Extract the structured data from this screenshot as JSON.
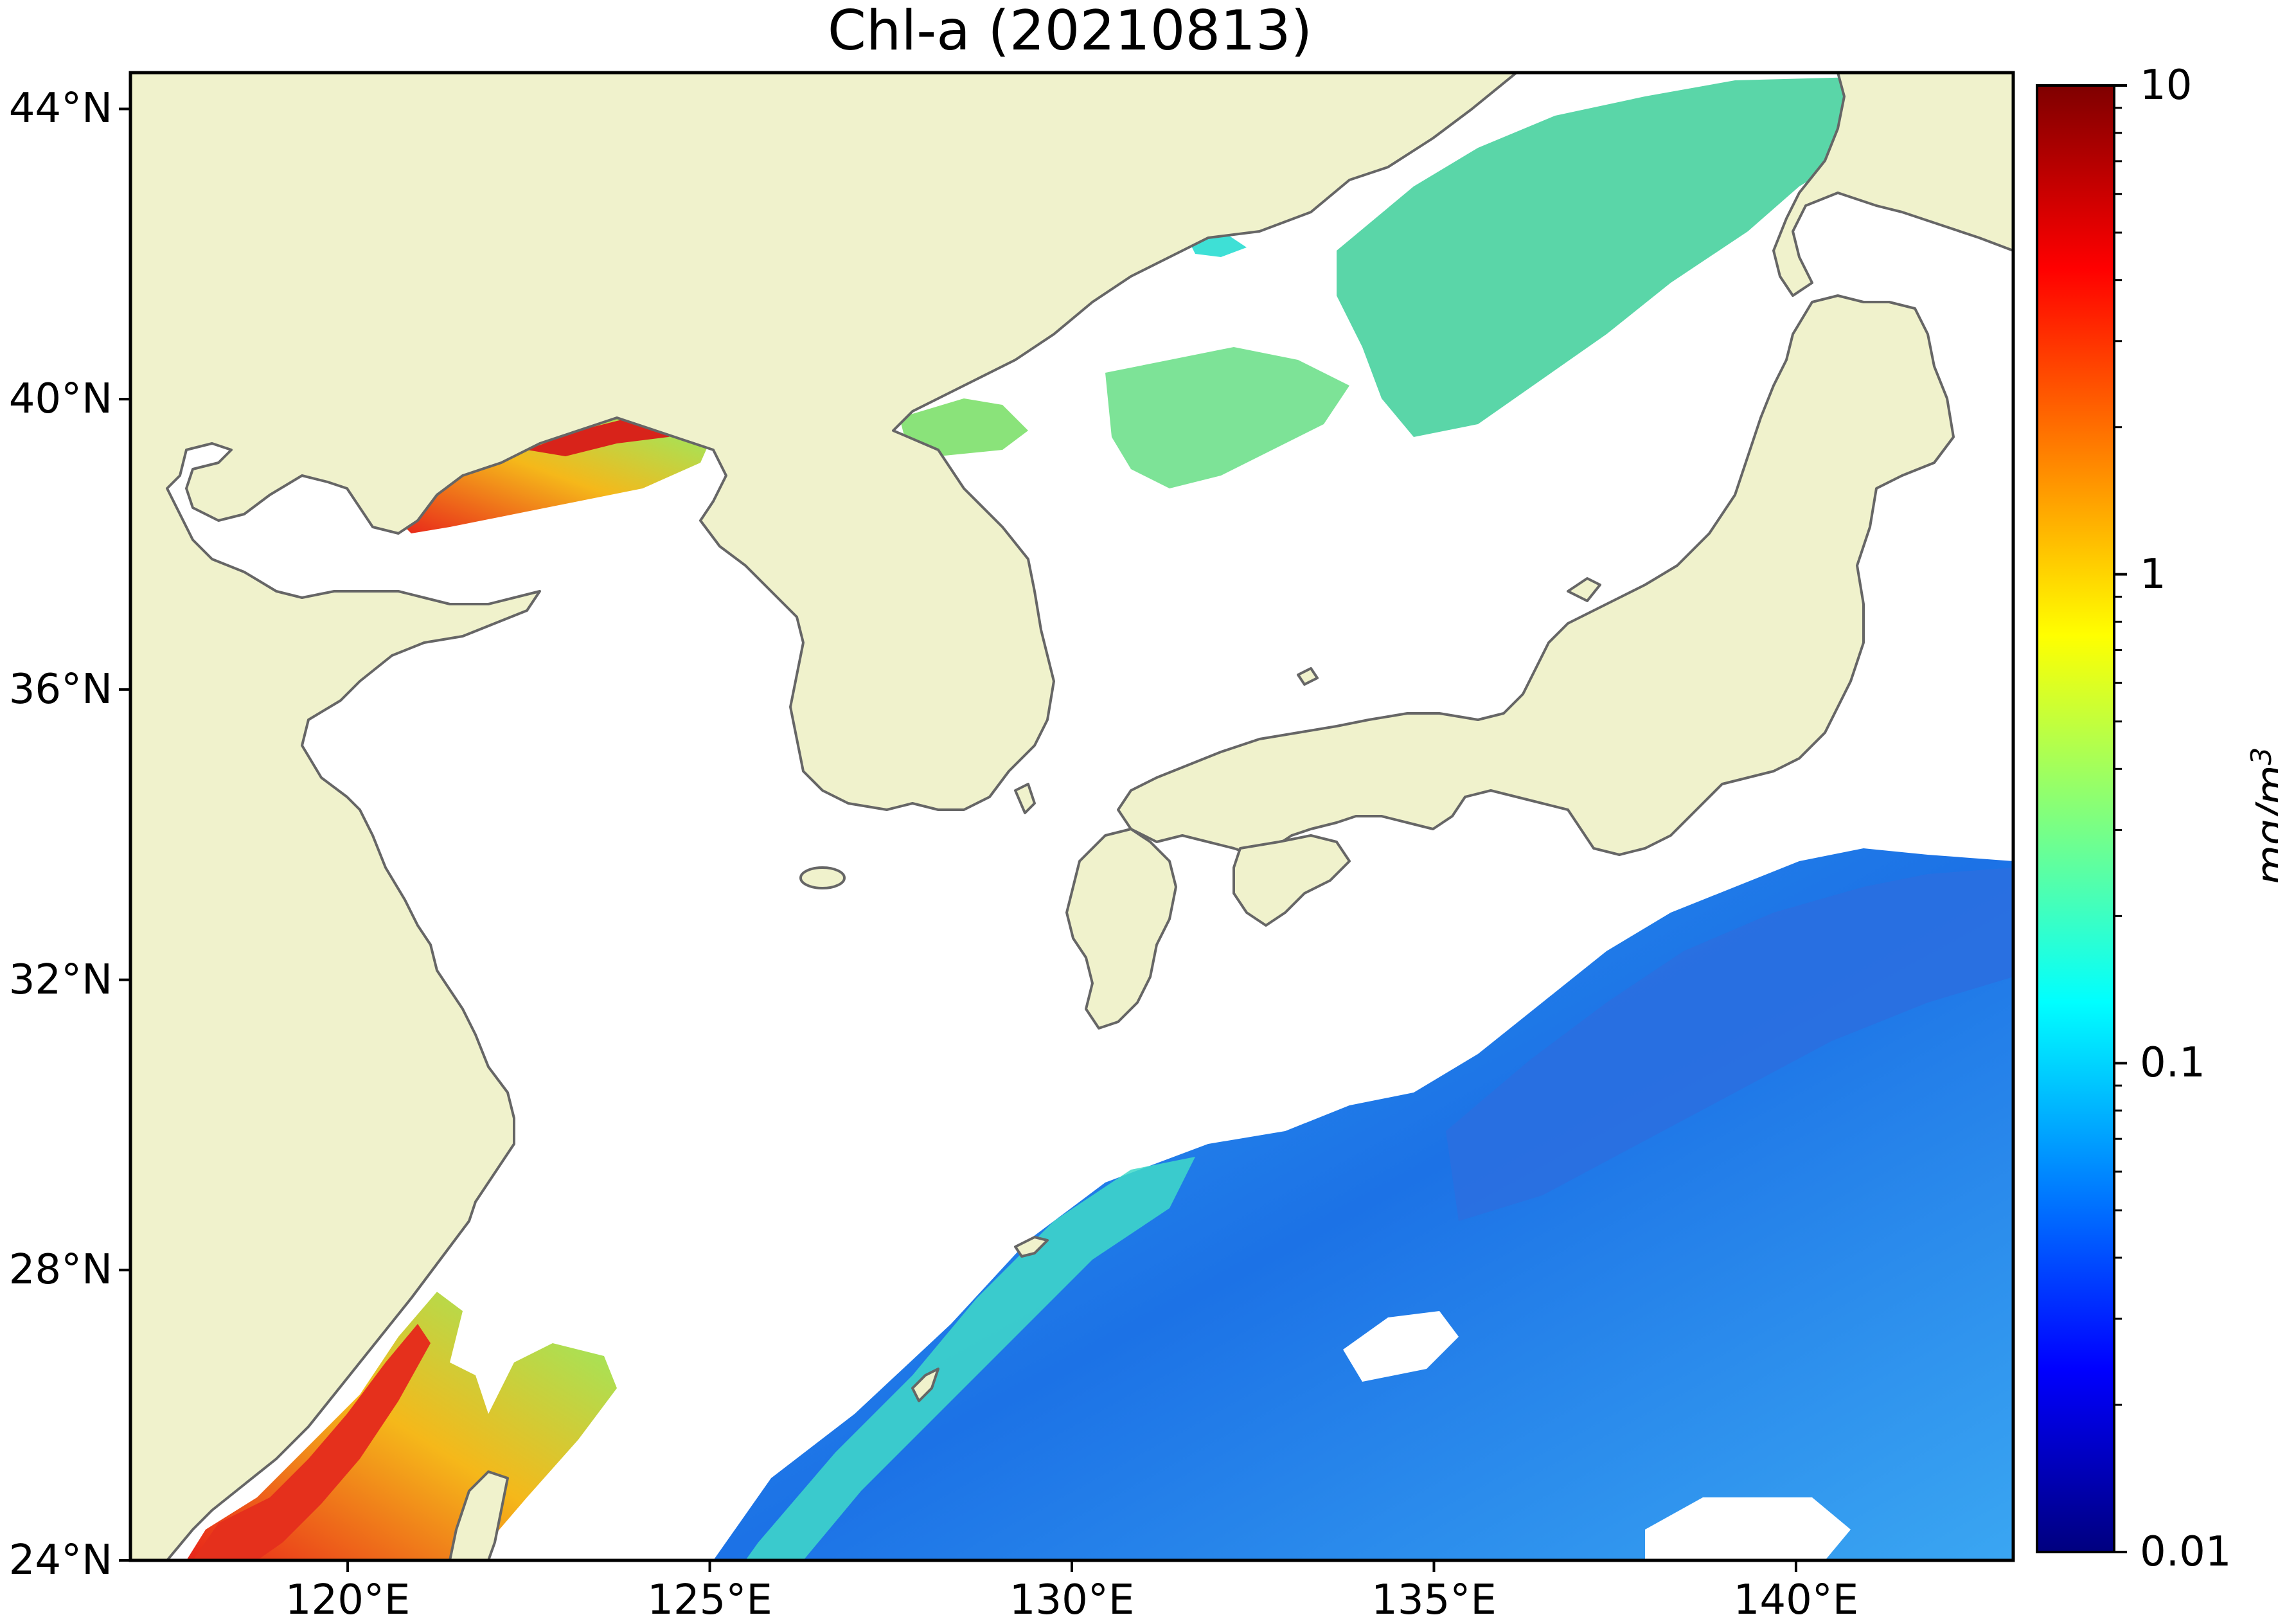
{
  "title": "Chl-a (20210813)",
  "map": {
    "projection": "equirectangular",
    "lon_range": [
      117,
      143
    ],
    "lat_range": [
      24,
      44.5
    ],
    "land_color": "#f0f2cc",
    "coast_color": "#666666",
    "no_data_color": "#ffffff",
    "lat_ticks": [
      {
        "value": 24,
        "label": "24°N"
      },
      {
        "value": 28,
        "label": "28°N"
      },
      {
        "value": 32,
        "label": "32°N"
      },
      {
        "value": 36,
        "label": "36°N"
      },
      {
        "value": 40,
        "label": "40°N"
      },
      {
        "value": 44,
        "label": "44°N"
      }
    ],
    "lon_ticks": [
      {
        "value": 120,
        "label": "120°E"
      },
      {
        "value": 125,
        "label": "125°E"
      },
      {
        "value": 130,
        "label": "130°E"
      },
      {
        "value": 135,
        "label": "135°E"
      },
      {
        "value": 140,
        "label": "140°E"
      }
    ]
  },
  "colorbar": {
    "label": "mg/m",
    "label_superscript": "3",
    "scale": "log",
    "colormap": "jet",
    "min": 0.01,
    "max": 10,
    "ticks": [
      {
        "value": 10,
        "label": "10"
      },
      {
        "value": 1,
        "label": "1"
      },
      {
        "value": 0.1,
        "label": "0.1"
      },
      {
        "value": 0.01,
        "label": "0.01"
      }
    ],
    "stops": [
      "#00007f",
      "#0000ff",
      "#007fff",
      "#00ffff",
      "#7fff7f",
      "#ffff00",
      "#ff7f00",
      "#ff0000",
      "#7f0000"
    ]
  }
}
